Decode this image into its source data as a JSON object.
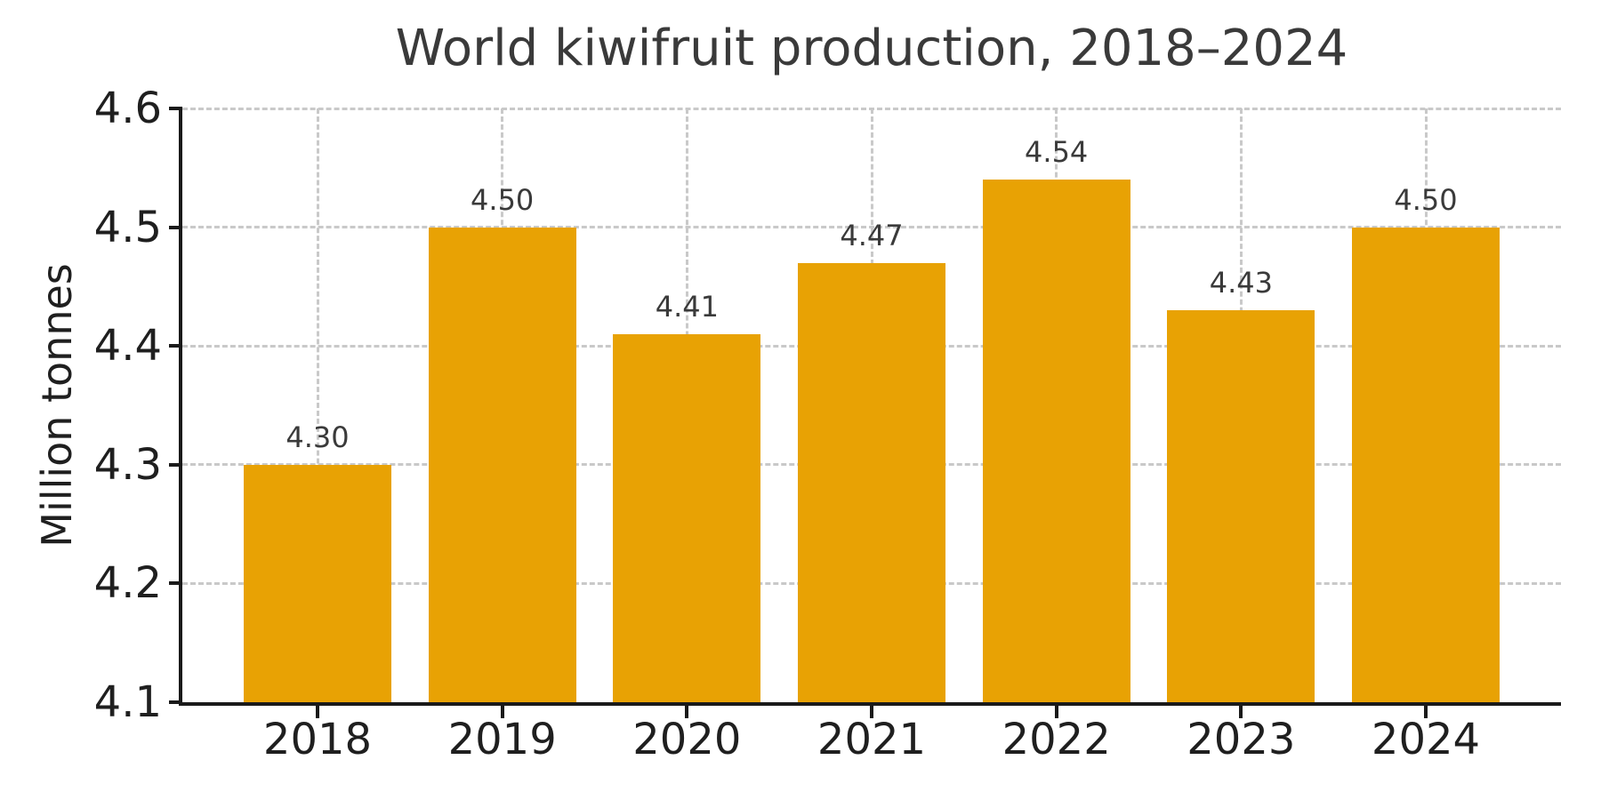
{
  "chart_data": {
    "type": "bar",
    "title": "World kiwifruit production, 2018–2024",
    "xlabel": "",
    "ylabel": "Million tonnes",
    "categories": [
      "2018",
      "2019",
      "2020",
      "2021",
      "2022",
      "2023",
      "2024"
    ],
    "values": [
      4.3,
      4.5,
      4.41,
      4.47,
      4.54,
      4.43,
      4.5
    ],
    "value_labels": [
      "4.30",
      "4.50",
      "4.41",
      "4.47",
      "4.54",
      "4.43",
      "4.50"
    ],
    "ylim": [
      4.1,
      4.6
    ],
    "yticks": [
      4.1,
      4.2,
      4.3,
      4.4,
      4.5,
      4.6
    ],
    "ytick_labels": [
      "4.1",
      "4.2",
      "4.3",
      "4.4",
      "4.5",
      "4.6"
    ],
    "grid": true,
    "grid_style": "dashed",
    "legend": "none",
    "bar_color": "#E8A204",
    "grid_color": "#c9c9c9",
    "spine_color": "#1a1a1a",
    "text_color": "#3a3a3a",
    "tick_label_color": "#1f1f1f"
  }
}
